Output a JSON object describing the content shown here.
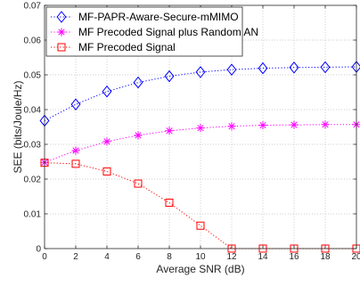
{
  "chart_data": {
    "type": "line",
    "title": "",
    "xlabel": "Average SNR (dB)",
    "ylabel": "SEE (bits/Joule/Hz)",
    "xlim": [
      0,
      20
    ],
    "ylim": [
      0,
      0.07
    ],
    "x_ticks": [
      0,
      2,
      4,
      6,
      8,
      10,
      12,
      14,
      16,
      18,
      20
    ],
    "x_tick_labels": [
      "0",
      "2",
      "4",
      "6",
      "8",
      "10",
      "12",
      "14",
      "16",
      "18",
      "20"
    ],
    "y_ticks": [
      0,
      0.01,
      0.02,
      0.03,
      0.04,
      0.05,
      0.06,
      0.07
    ],
    "y_tick_labels": [
      "0",
      "0.01",
      "0.02",
      "0.03",
      "0.04",
      "0.05",
      "0.06",
      "0.07"
    ],
    "grid": true,
    "legend_position": "top-left",
    "x": [
      0,
      2,
      4,
      6,
      8,
      10,
      12,
      14,
      16,
      18,
      20
    ],
    "series": [
      {
        "name": "MF-PAPR-Aware-Secure-mMIMO",
        "color": "#0000ff",
        "marker": "diamond",
        "line_style": "dotted",
        "values": [
          0.0368,
          0.0415,
          0.0452,
          0.0478,
          0.0496,
          0.0508,
          0.0515,
          0.0519,
          0.0521,
          0.0522,
          0.0523
        ]
      },
      {
        "name": "MF Precoded Signal plus Random AN",
        "color": "#ff00ff",
        "marker": "asterisk",
        "line_style": "dotted",
        "values": [
          0.0248,
          0.0282,
          0.0308,
          0.0326,
          0.0339,
          0.0347,
          0.0352,
          0.0355,
          0.0356,
          0.0357,
          0.0357
        ]
      },
      {
        "name": "MF Precoded Signal",
        "color": "#ff0000",
        "marker": "square",
        "line_style": "dotted",
        "values": [
          0.0247,
          0.0244,
          0.0222,
          0.0187,
          0.0132,
          0.0066,
          0.0,
          0.0,
          0.0,
          0.0,
          0.0
        ]
      }
    ]
  }
}
